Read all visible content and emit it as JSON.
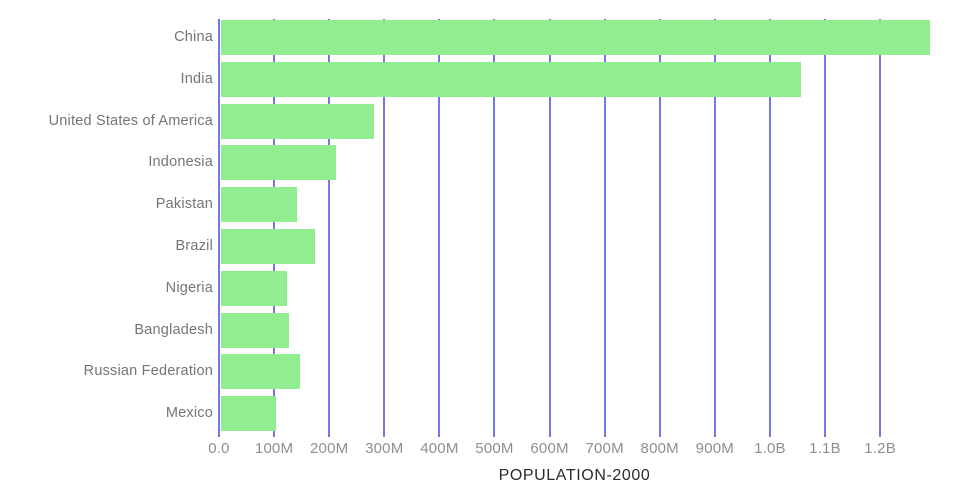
{
  "chart_data": {
    "type": "bar",
    "orientation": "horizontal",
    "title": "POPULATION-2000",
    "xlabel": "",
    "ylabel": "",
    "categories": [
      "China",
      "India",
      "United States of America",
      "Indonesia",
      "Pakistan",
      "Brazil",
      "Nigeria",
      "Bangladesh",
      "Russian Federation",
      "Mexico"
    ],
    "values_millions": [
      1290.6,
      1056.6,
      282.2,
      211.5,
      142.3,
      174.8,
      122.9,
      127.7,
      146.6,
      103.0
    ],
    "x_ticks": [
      {
        "label": "0.0",
        "value_millions": 0
      },
      {
        "label": "100M",
        "value_millions": 100
      },
      {
        "label": "200M",
        "value_millions": 200
      },
      {
        "label": "300M",
        "value_millions": 300
      },
      {
        "label": "400M",
        "value_millions": 400
      },
      {
        "label": "500M",
        "value_millions": 500
      },
      {
        "label": "600M",
        "value_millions": 600
      },
      {
        "label": "700M",
        "value_millions": 700
      },
      {
        "label": "800M",
        "value_millions": 800
      },
      {
        "label": "900M",
        "value_millions": 900
      },
      {
        "label": "1.0B",
        "value_millions": 1000
      },
      {
        "label": "1.1B",
        "value_millions": 1100
      },
      {
        "label": "1.2B",
        "value_millions": 1200
      }
    ],
    "xlim_millions": [
      0,
      1290.6
    ],
    "grid": "vertical-only",
    "legend": "none",
    "colors": {
      "bar": "#90ee90",
      "grid": "#7577e8",
      "axis_line": "#7577e8",
      "category_label": "#757575",
      "tick_label": "#8f8f8f",
      "title": "#2b2b2b",
      "background": "#ffffff"
    }
  }
}
